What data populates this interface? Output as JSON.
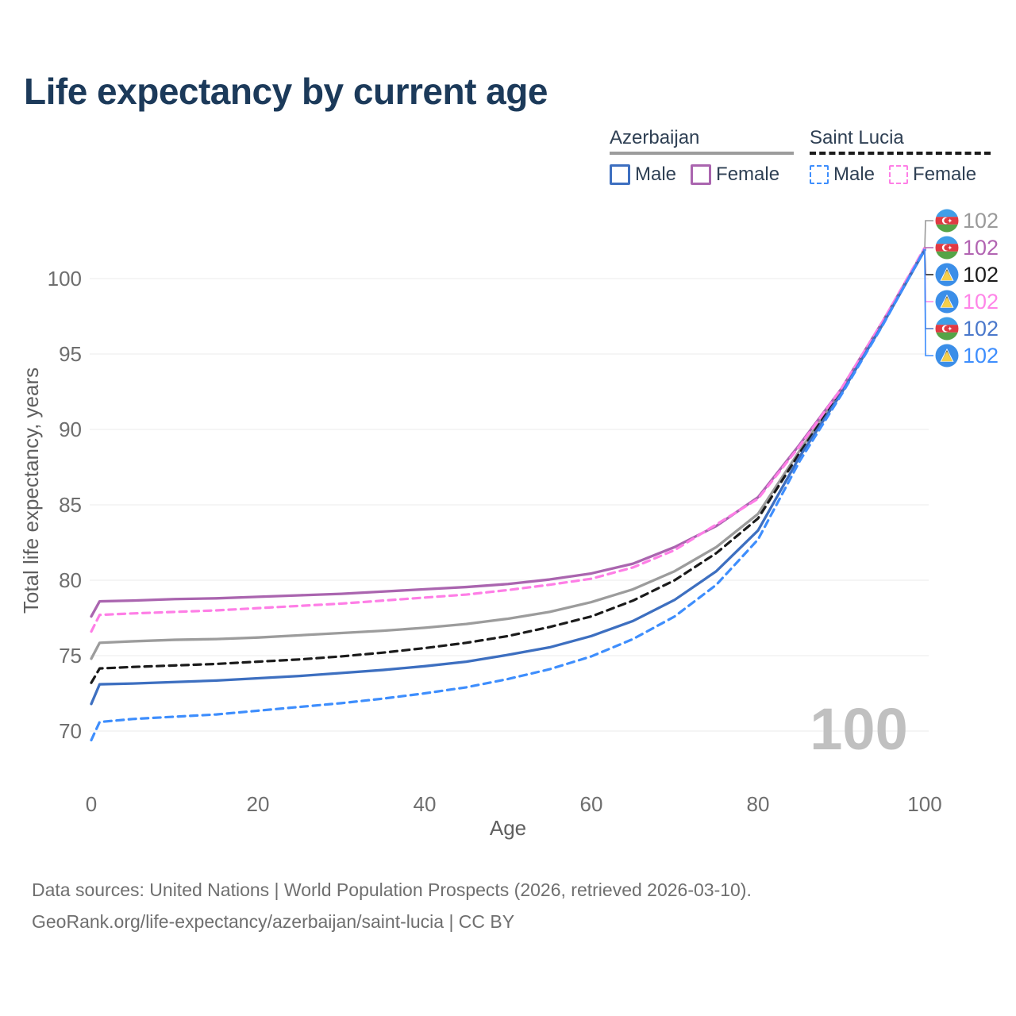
{
  "title": "Life expectancy by current age",
  "legend": {
    "groups": [
      {
        "name": "Azerbaijan",
        "line_style": "solid",
        "line_color": "#9c9c9c",
        "items": [
          {
            "label": "Male",
            "color": "#3d6fc0",
            "dashed": false
          },
          {
            "label": "Female",
            "color": "#aa65af",
            "dashed": false
          }
        ]
      },
      {
        "name": "Saint Lucia",
        "line_style": "dashed",
        "line_color": "#1b1b1b",
        "items": [
          {
            "label": "Male",
            "color": "#3e8efd",
            "dashed": true
          },
          {
            "label": "Female",
            "color": "#fe7ee6",
            "dashed": true
          }
        ]
      }
    ]
  },
  "watermark": "100",
  "footer": {
    "line1": "Data sources: United Nations | World Population Prospects (2026, retrieved 2026-03-10).",
    "line2": "GeoRank.org/life-expectancy/azerbaijan/saint-lucia | CC BY"
  },
  "chart_data": {
    "type": "line",
    "title": "Life expectancy by current age",
    "xlabel": "Age",
    "ylabel": "Total life expectancy, years",
    "x_ticks": [
      0,
      20,
      40,
      60,
      80,
      100
    ],
    "y_ticks": [
      70,
      75,
      80,
      85,
      90,
      95,
      100
    ],
    "xlim": [
      0,
      100
    ],
    "ylim": [
      67.5,
      103.5
    ],
    "grid": "horizontal",
    "legend_position": "top-right",
    "x": [
      0,
      1,
      5,
      10,
      15,
      20,
      25,
      30,
      35,
      40,
      45,
      50,
      55,
      60,
      65,
      70,
      75,
      80,
      85,
      90,
      95,
      100
    ],
    "series": [
      {
        "id": "azerbaijan-total",
        "name": "Azerbaijan",
        "color": "#9c9c9c",
        "dashed": false,
        "flag": "azerbaijan",
        "end_label": "102",
        "label_color": "#9a9a9a",
        "values": [
          74.8,
          75.85,
          75.95,
          76.05,
          76.1,
          76.2,
          76.35,
          76.5,
          76.65,
          76.85,
          77.1,
          77.45,
          77.9,
          78.55,
          79.4,
          80.6,
          82.2,
          84.4,
          88.6,
          92.55,
          97.1,
          101.9
        ]
      },
      {
        "id": "azerbaijan-female",
        "name": "Azerbaijan Female",
        "color": "#aa65af",
        "dashed": false,
        "flag": "azerbaijan",
        "end_label": "102",
        "label_color": "#b264b2",
        "values": [
          77.6,
          78.6,
          78.65,
          78.75,
          78.8,
          78.9,
          79.0,
          79.1,
          79.25,
          79.4,
          79.55,
          79.75,
          80.05,
          80.45,
          81.1,
          82.2,
          83.6,
          85.5,
          89.0,
          92.7,
          97.2,
          101.95
        ]
      },
      {
        "id": "saint-lucia-total",
        "name": "Saint Lucia",
        "color": "#1b1b1b",
        "dashed": true,
        "flag": "saint-lucia",
        "end_label": "102",
        "label_color": "#1c1c1c",
        "values": [
          73.2,
          74.15,
          74.25,
          74.35,
          74.45,
          74.6,
          74.75,
          74.95,
          75.2,
          75.5,
          75.85,
          76.3,
          76.9,
          77.6,
          78.65,
          80.0,
          81.8,
          84.1,
          88.45,
          92.5,
          97.1,
          102.0
        ]
      },
      {
        "id": "saint-lucia-female",
        "name": "Saint Lucia Female",
        "color": "#fe7ee6",
        "dashed": true,
        "flag": "saint-lucia",
        "end_label": "102",
        "label_color": "#ff85e8",
        "values": [
          76.6,
          77.7,
          77.8,
          77.9,
          78.0,
          78.15,
          78.3,
          78.45,
          78.65,
          78.85,
          79.05,
          79.35,
          79.7,
          80.1,
          80.85,
          82.0,
          83.7,
          85.4,
          88.9,
          92.7,
          97.2,
          102.05
        ]
      },
      {
        "id": "azerbaijan-male",
        "name": "Azerbaijan Male",
        "color": "#3d6fc0",
        "dashed": false,
        "flag": "azerbaijan",
        "end_label": "102",
        "label_color": "#4a78cb",
        "values": [
          71.8,
          73.1,
          73.15,
          73.25,
          73.35,
          73.5,
          73.65,
          73.85,
          74.05,
          74.3,
          74.6,
          75.05,
          75.55,
          76.3,
          77.3,
          78.7,
          80.6,
          83.3,
          88.2,
          92.4,
          97.0,
          101.9
        ]
      },
      {
        "id": "saint-lucia-male",
        "name": "Saint Lucia Male",
        "color": "#3e8efd",
        "dashed": true,
        "flag": "saint-lucia",
        "end_label": "102",
        "label_color": "#3e8efd",
        "values": [
          69.4,
          70.6,
          70.8,
          70.95,
          71.1,
          71.35,
          71.6,
          71.85,
          72.15,
          72.5,
          72.9,
          73.45,
          74.1,
          74.95,
          76.1,
          77.6,
          79.7,
          82.7,
          87.9,
          92.3,
          96.95,
          101.95
        ]
      }
    ]
  }
}
